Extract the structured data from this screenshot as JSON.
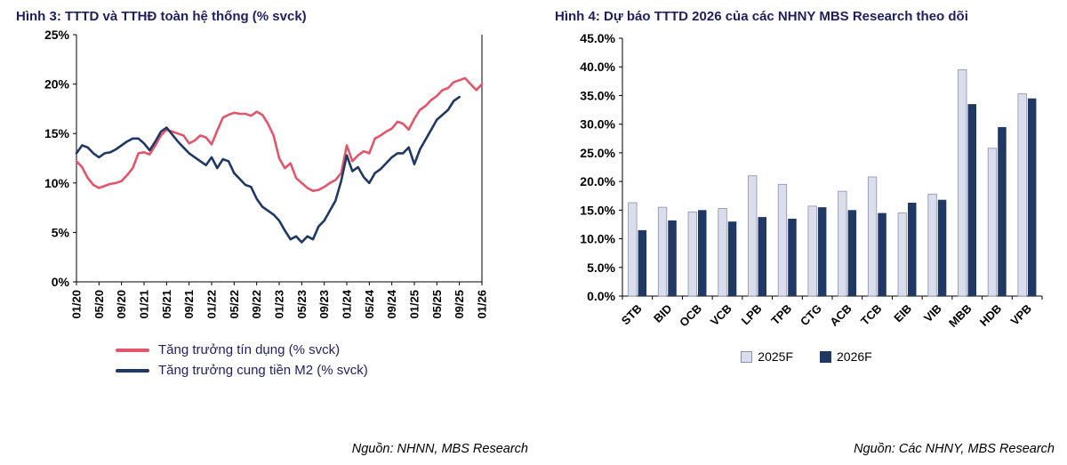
{
  "chart_data": [
    {
      "type": "line",
      "title": "Hình 3: TTTD và TTHĐ toàn hệ thống (% svck)",
      "ylim": [
        0,
        25
      ],
      "yticks": [
        "0%",
        "5%",
        "10%",
        "15%",
        "20%",
        "25%"
      ],
      "tick_every": 4,
      "x_tick_labels": [
        "01/20",
        "05/20",
        "09/20",
        "01/21",
        "05/21",
        "09/21",
        "01/22",
        "05/22",
        "09/22",
        "01/23",
        "05/23",
        "09/23",
        "01/24",
        "05/24",
        "09/24",
        "01/25",
        "05/25",
        "09/25",
        "01/26"
      ],
      "series": [
        {
          "name": "Tăng trưởng tín dụng (% svck)",
          "color": "#E0566A",
          "values": [
            12.2,
            11.6,
            10.5,
            9.8,
            9.5,
            9.7,
            9.9,
            10.0,
            10.2,
            10.8,
            11.5,
            13.0,
            13.1,
            12.9,
            13.8,
            14.8,
            15.4,
            15.2,
            15.0,
            14.8,
            14.0,
            14.3,
            14.8,
            14.6,
            13.9,
            15.3,
            16.6,
            16.9,
            17.1,
            17.0,
            17.0,
            16.8,
            17.2,
            16.9,
            16.0,
            14.8,
            12.5,
            11.5,
            12.0,
            10.5,
            10.0,
            9.5,
            9.2,
            9.3,
            9.6,
            10.0,
            10.3,
            11.0,
            13.8,
            12.2,
            12.8,
            13.2,
            13.0,
            14.5,
            14.8,
            15.2,
            15.5,
            16.2,
            16.0,
            15.4,
            16.5,
            17.4,
            17.8,
            18.4,
            18.8,
            19.4,
            19.6,
            20.2,
            20.4,
            20.6,
            20.0,
            19.4,
            20.0
          ]
        },
        {
          "name": "Tăng trưởng cung tiền M2 (% svck)",
          "color": "#1F3864",
          "values": [
            13.0,
            13.8,
            13.6,
            13.0,
            12.6,
            13.0,
            13.1,
            13.4,
            13.8,
            14.2,
            14.5,
            14.5,
            14.0,
            13.3,
            14.2,
            15.2,
            15.6,
            14.9,
            14.2,
            13.6,
            13.0,
            12.6,
            12.2,
            11.8,
            12.6,
            11.5,
            12.4,
            12.2,
            11.0,
            10.4,
            9.8,
            9.6,
            8.4,
            7.6,
            7.2,
            6.8,
            6.2,
            5.2,
            4.3,
            4.6,
            4.0,
            4.6,
            4.3,
            5.6,
            6.2,
            7.2,
            8.2,
            10.2,
            12.8,
            11.2,
            11.6,
            10.6,
            10.0,
            11.0,
            11.4,
            12.0,
            12.6,
            13.0,
            13.0,
            13.6,
            11.9,
            13.4,
            14.4,
            15.4,
            16.4,
            16.9,
            17.4,
            18.3,
            18.7
          ]
        }
      ],
      "source": "Nguồn: NHNN, MBS Research"
    },
    {
      "type": "bar",
      "title": "Hình 4: Dự báo TTTD 2026 của các NHNY MBS Research theo dõi",
      "ylim": [
        0,
        45
      ],
      "yticks": [
        "0.0%",
        "5.0%",
        "10.0%",
        "15.0%",
        "20.0%",
        "25.0%",
        "30.0%",
        "35.0%",
        "40.0%",
        "45.0%"
      ],
      "categories": [
        "STB",
        "BID",
        "OCB",
        "VCB",
        "LPB",
        "TPB",
        "CTG",
        "ACB",
        "TCB",
        "EIB",
        "VIB",
        "MBB",
        "HDB",
        "VPB"
      ],
      "series": [
        {
          "name": "2025F",
          "color": "#DADDEB",
          "border": "#8A90AD",
          "values": [
            16.3,
            15.5,
            14.7,
            15.3,
            21.0,
            19.5,
            15.7,
            18.3,
            20.8,
            14.5,
            17.8,
            39.5,
            25.8,
            35.3
          ]
        },
        {
          "name": "2026F",
          "color": "#1F3864",
          "values": [
            11.5,
            13.2,
            15.0,
            13.0,
            13.8,
            13.5,
            15.5,
            15.0,
            14.5,
            16.3,
            16.8,
            33.5,
            29.5,
            34.5
          ]
        }
      ],
      "source": "Nguồn: Các NHNY, MBS Research"
    }
  ]
}
